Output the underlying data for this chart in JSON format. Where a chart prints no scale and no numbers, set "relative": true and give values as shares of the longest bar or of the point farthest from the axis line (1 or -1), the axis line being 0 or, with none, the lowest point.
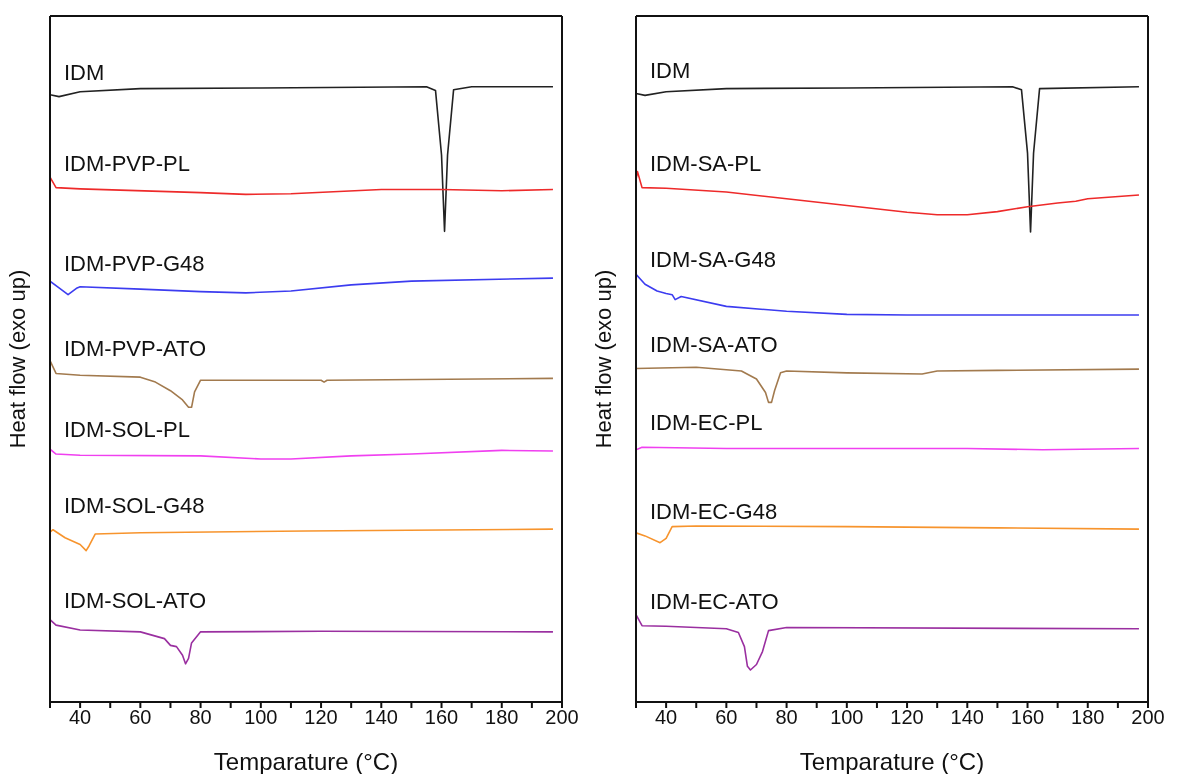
{
  "chart_data": [
    {
      "type": "line",
      "relative": true,
      "xlabel": "Temparature (°C)",
      "ylabel": "Heat flow (exo up)",
      "xlim": [
        30,
        200
      ],
      "xticks": [
        {
          "value": 30,
          "label": null
        },
        40,
        {
          "value": 50,
          "label": null
        },
        60,
        {
          "value": 70,
          "label": null
        },
        80,
        {
          "value": 90,
          "label": null
        },
        100,
        {
          "value": 110,
          "label": null
        },
        120,
        {
          "value": 130,
          "label": null
        },
        140,
        {
          "value": 150,
          "label": null
        },
        160,
        {
          "value": 170,
          "label": null
        },
        180,
        {
          "value": 190,
          "label": null
        },
        200
      ],
      "series": [
        {
          "name": "IDM",
          "color": "#222222",
          "x": [
            30,
            33,
            40,
            60,
            100,
            155,
            158,
            160,
            161,
            162,
            164,
            170,
            197
          ],
          "values": [
            0.987,
            0.984,
            0.992,
            0.997,
            0.998,
            1.0,
            0.994,
            0.889,
            0.765,
            0.889,
            0.995,
            1.0,
            1.0
          ]
        },
        {
          "name": "IDM-PVP-PL",
          "color": "#ee2a2a",
          "x": [
            30,
            32,
            40,
            80,
            95,
            110,
            140,
            160,
            180,
            197
          ],
          "values": [
            0.853,
            0.836,
            0.834,
            0.828,
            0.825,
            0.826,
            0.833,
            0.833,
            0.831,
            0.833
          ]
        },
        {
          "name": "IDM-PVP-G48",
          "color": "#3c3cf0",
          "x": [
            30,
            33,
            36,
            39,
            40,
            60,
            80,
            95,
            110,
            130,
            150,
            197
          ],
          "values": [
            0.684,
            0.673,
            0.662,
            0.673,
            0.675,
            0.671,
            0.667,
            0.665,
            0.668,
            0.678,
            0.684,
            0.689
          ]
        },
        {
          "name": "IDM-PVP-ATO",
          "color": "#a27a4e",
          "x": [
            30,
            32,
            40,
            60,
            65,
            70,
            74,
            76,
            77,
            78,
            80,
            100,
            120,
            121,
            122,
            197
          ],
          "values": [
            0.555,
            0.534,
            0.531,
            0.528,
            0.52,
            0.506,
            0.491,
            0.479,
            0.479,
            0.504,
            0.523,
            0.523,
            0.523,
            0.52,
            0.523,
            0.526
          ]
        },
        {
          "name": "IDM-SOL-PL",
          "color": "#f040f0",
          "x": [
            30,
            32,
            40,
            80,
            100,
            110,
            130,
            150,
            180,
            197
          ],
          "values": [
            0.411,
            0.403,
            0.401,
            0.4,
            0.395,
            0.395,
            0.4,
            0.403,
            0.409,
            0.408
          ]
        },
        {
          "name": "IDM-SOL-G48",
          "color": "#f7942d",
          "x": [
            30,
            31,
            35,
            40,
            42,
            43,
            45,
            60,
            115,
            197
          ],
          "values": [
            0.276,
            0.28,
            0.267,
            0.256,
            0.246,
            0.254,
            0.273,
            0.275,
            0.278,
            0.281
          ]
        },
        {
          "name": "IDM-SOL-ATO",
          "color": "#9a2fa0",
          "x": [
            30,
            32,
            40,
            60,
            68,
            70,
            72,
            74,
            75,
            76,
            77,
            80,
            120,
            197
          ],
          "values": [
            0.134,
            0.125,
            0.117,
            0.114,
            0.103,
            0.092,
            0.09,
            0.076,
            0.062,
            0.071,
            0.096,
            0.114,
            0.115,
            0.114
          ]
        }
      ]
    },
    {
      "type": "line",
      "relative": true,
      "xlabel": "Temparature (°C)",
      "ylabel": "Heat flow (exo up)",
      "xlim": [
        30,
        200
      ],
      "xticks": [
        {
          "value": 30,
          "label": null
        },
        40,
        {
          "value": 50,
          "label": null
        },
        60,
        {
          "value": 70,
          "label": null
        },
        80,
        {
          "value": 90,
          "label": null
        },
        100,
        {
          "value": 110,
          "label": null
        },
        120,
        {
          "value": 130,
          "label": null
        },
        140,
        {
          "value": 150,
          "label": null
        },
        160,
        {
          "value": 170,
          "label": null
        },
        180,
        {
          "value": 190,
          "label": null
        },
        200
      ],
      "series": [
        {
          "name": "IDM",
          "color": "#222222",
          "x": [
            30,
            33,
            40,
            60,
            100,
            155,
            158,
            160,
            161,
            162,
            164,
            197
          ],
          "values": [
            0.989,
            0.986,
            0.992,
            0.997,
            0.998,
            1.0,
            0.995,
            0.892,
            0.764,
            0.892,
            0.997,
            1.0
          ]
        },
        {
          "name": "IDM-SA-PL",
          "color": "#ee2a2a",
          "x": [
            30,
            30.5,
            32,
            40,
            60,
            80,
            100,
            120,
            130,
            140,
            150,
            160,
            170,
            176,
            180,
            197
          ],
          "values": [
            0.849,
            0.862,
            0.836,
            0.835,
            0.829,
            0.818,
            0.807,
            0.796,
            0.792,
            0.792,
            0.797,
            0.805,
            0.811,
            0.814,
            0.818,
            0.824
          ]
        },
        {
          "name": "IDM-SA-G48",
          "color": "#3c3cf0",
          "x": [
            30,
            33,
            37,
            40,
            42,
            43,
            45,
            60,
            80,
            100,
            120,
            140,
            197
          ],
          "values": [
            0.695,
            0.679,
            0.668,
            0.664,
            0.662,
            0.654,
            0.659,
            0.643,
            0.635,
            0.63,
            0.629,
            0.629,
            0.629
          ]
        },
        {
          "name": "IDM-SA-ATO",
          "color": "#a27a4e",
          "x": [
            30,
            50,
            65,
            70,
            73,
            74,
            75,
            76,
            78,
            80,
            100,
            125,
            130,
            150,
            197
          ],
          "values": [
            0.542,
            0.544,
            0.538,
            0.525,
            0.503,
            0.487,
            0.487,
            0.506,
            0.535,
            0.538,
            0.535,
            0.533,
            0.538,
            0.539,
            0.541
          ]
        },
        {
          "name": "IDM-EC-PL",
          "color": "#f040f0",
          "x": [
            30,
            32,
            60,
            100,
            140,
            165,
            197
          ],
          "values": [
            0.41,
            0.414,
            0.412,
            0.412,
            0.412,
            0.41,
            0.412
          ]
        },
        {
          "name": "IDM-EC-G48",
          "color": "#f7942d",
          "x": [
            30,
            33,
            38,
            40,
            42,
            50,
            100,
            150,
            197
          ],
          "values": [
            0.275,
            0.27,
            0.259,
            0.266,
            0.285,
            0.286,
            0.285,
            0.283,
            0.281
          ]
        },
        {
          "name": "IDM-EC-ATO",
          "color": "#9a2fa0",
          "x": [
            30,
            32,
            40,
            60,
            64,
            66,
            67,
            68,
            70,
            72,
            74,
            80,
            197
          ],
          "values": [
            0.142,
            0.124,
            0.123,
            0.119,
            0.113,
            0.09,
            0.058,
            0.052,
            0.061,
            0.082,
            0.116,
            0.121,
            0.119
          ]
        }
      ]
    }
  ]
}
